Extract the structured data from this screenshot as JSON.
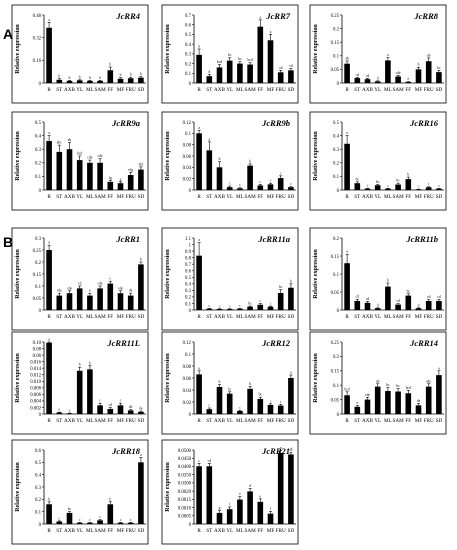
{
  "sections": [
    "A",
    "B"
  ],
  "colors": {
    "bar": "#000000",
    "axis": "#000000"
  },
  "chart_data": [
    {
      "type": "bar",
      "title": "JcRR4",
      "ylabel": "Relative expression",
      "categories": [
        "R",
        "ST",
        "AXB",
        "YL",
        "ML",
        "SAM",
        "FF",
        "MF",
        "FRU",
        "SD"
      ],
      "values": [
        0.52,
        0.03,
        0.02,
        0.025,
        0.02,
        0.02,
        0.12,
        0.04,
        0.045,
        0.05
      ],
      "errors": [
        0.05,
        0.01,
        0.005,
        0.005,
        0.005,
        0.005,
        0.03,
        0.01,
        0.01,
        0.01
      ],
      "letters": [
        "a",
        "b",
        "b",
        "b",
        "b",
        "b",
        "b",
        "b",
        "b",
        "b"
      ],
      "yticks": [
        "0",
        "0.16",
        "0.32",
        "0.48"
      ],
      "ylim": [
        0,
        0.64
      ]
    },
    {
      "type": "bar",
      "title": "JcRR7",
      "ylabel": "Relative expression",
      "categories": [
        "R",
        "ST",
        "AXB",
        "YL",
        "ML",
        "SAM",
        "FF",
        "MF",
        "FRU",
        "SD"
      ],
      "values": [
        0.29,
        0.07,
        0.16,
        0.23,
        0.2,
        0.19,
        0.58,
        0.44,
        0.11,
        0.13
      ],
      "errors": [
        0.06,
        0.02,
        0.03,
        0.03,
        0.02,
        0.02,
        0.07,
        0.06,
        0.02,
        0.02
      ],
      "letters": [
        "b",
        "d",
        "bcd",
        "bc",
        "bc",
        "bcd",
        "a",
        "a",
        "cd",
        "cd"
      ],
      "yticks": [
        "0",
        "0.1",
        "0.2",
        "0.3",
        "0.4",
        "0.5",
        "0.6",
        "0.7"
      ],
      "ylim": [
        0,
        0.7
      ]
    },
    {
      "type": "bar",
      "title": "JcRR8",
      "ylabel": "Relative expression",
      "categories": [
        "R",
        "ST",
        "AXB",
        "YL",
        "ML",
        "SAM",
        "FF",
        "MF",
        "FRU",
        "SD"
      ],
      "values": [
        0.071,
        0.018,
        0.014,
        0.006,
        0.083,
        0.024,
        0.004,
        0.05,
        0.08,
        0.04
      ],
      "errors": [
        0.01,
        0.003,
        0.003,
        0.002,
        0.01,
        0.004,
        0.001,
        0.008,
        0.012,
        0.006
      ],
      "letters": [
        "ab",
        "cd",
        "cd",
        "d",
        "a",
        "cde",
        "e",
        "b",
        "ab",
        "bc"
      ],
      "yticks": [
        "0",
        "0.05",
        "0.1",
        "0.15",
        "0.2",
        "0.25"
      ],
      "ylim": [
        0,
        0.25
      ]
    },
    {
      "type": "bar",
      "title": "JcRR9a",
      "ylabel": "Relative expression",
      "categories": [
        "R",
        "ST",
        "AXB",
        "YL",
        "ML",
        "SAM",
        "FF",
        "MF",
        "FRU",
        "SD"
      ],
      "values": [
        0.36,
        0.28,
        0.3,
        0.22,
        0.2,
        0.2,
        0.06,
        0.05,
        0.11,
        0.15
      ],
      "errors": [
        0.04,
        0.05,
        0.05,
        0.03,
        0.02,
        0.03,
        0.01,
        0.01,
        0.02,
        0.02
      ],
      "letters": [
        "a",
        "abc",
        "ab",
        "bcd",
        "cde",
        "cde",
        "fg",
        "g",
        "efg",
        "def"
      ],
      "yticks": [
        "0",
        "0.1",
        "0.2",
        "0.3",
        "0.4",
        "0.5"
      ],
      "ylim": [
        0,
        0.5
      ]
    },
    {
      "type": "bar",
      "title": "JcRR9b",
      "ylabel": "Relative expression",
      "categories": [
        "R",
        "ST",
        "AXB",
        "YL",
        "ML",
        "SAM",
        "FF",
        "MF",
        "FRU",
        "SD"
      ],
      "values": [
        0.1,
        0.07,
        0.04,
        0.005,
        0.003,
        0.043,
        0.008,
        0.01,
        0.021,
        0.005
      ],
      "errors": [
        0.005,
        0.015,
        0.01,
        0.002,
        0.001,
        0.003,
        0.002,
        0.002,
        0.004,
        0.001
      ],
      "letters": [
        "a",
        "a",
        "b",
        "c",
        "c",
        "b",
        "c",
        "c",
        "c",
        "c"
      ],
      "yticks": [
        "0",
        "0.02",
        "0.04",
        "0.06",
        "0.08",
        "0.1",
        "0.12"
      ],
      "ylim": [
        0,
        0.12
      ]
    },
    {
      "type": "bar",
      "title": "JcRR16",
      "ylabel": "Relative expression",
      "categories": [
        "R",
        "ST",
        "AXB",
        "YL",
        "ML",
        "SAM",
        "FF",
        "MF",
        "FRU",
        "SD"
      ],
      "values": [
        0.34,
        0.05,
        0.01,
        0.035,
        0.01,
        0.04,
        0.08,
        0.005,
        0.02,
        0.01
      ],
      "errors": [
        0.06,
        0.01,
        0.003,
        0.005,
        0.002,
        0.01,
        0.015,
        0.001,
        0.004,
        0.002
      ],
      "letters": [
        "a",
        "bc",
        "c",
        "bc",
        "c",
        "bc",
        "b",
        "c",
        "c",
        "c"
      ],
      "yticks": [
        "0",
        "0.1",
        "0.2",
        "0.3",
        "0.4",
        "0.5"
      ],
      "ylim": [
        0,
        0.5
      ]
    },
    {
      "type": "bar",
      "title": "JcRR1",
      "ylabel": "Relative expression",
      "categories": [
        "R",
        "ST",
        "AXB",
        "YL",
        "ML",
        "SAM",
        "FF",
        "MF",
        "FRU",
        "SD"
      ],
      "values": [
        0.25,
        0.06,
        0.07,
        0.09,
        0.06,
        0.09,
        0.11,
        0.07,
        0.06,
        0.19
      ],
      "errors": [
        0.02,
        0.01,
        0.01,
        0.01,
        0.01,
        0.01,
        0.01,
        0.01,
        0.01,
        0.01
      ],
      "letters": [
        "a",
        "cde",
        "cde",
        "cd",
        "e",
        "cde",
        "c",
        "cde",
        "de",
        "b"
      ],
      "yticks": [
        "0",
        "0.05",
        "0.1",
        "0.15",
        "0.2",
        "0.25",
        "0.3"
      ],
      "ylim": [
        0,
        0.3
      ]
    },
    {
      "type": "bar",
      "title": "JcRR11a",
      "ylabel": "Relative expression",
      "categories": [
        "R",
        "ST",
        "AXB",
        "YL",
        "ML",
        "SAM",
        "FF",
        "MF",
        "FRU",
        "SD"
      ],
      "values": [
        0.83,
        0.02,
        0.015,
        0.015,
        0.02,
        0.05,
        0.08,
        0.05,
        0.26,
        0.34
      ],
      "errors": [
        0.2,
        0.005,
        0.004,
        0.004,
        0.005,
        0.01,
        0.02,
        0.01,
        0.05,
        0.06
      ],
      "letters": [
        "a",
        "c",
        "c",
        "c",
        "c",
        "bc",
        "c",
        "c",
        "bc",
        "b"
      ],
      "yticks": [
        "0",
        "0.1",
        "0.2",
        "0.3",
        "0.4",
        "0.5",
        "0.6",
        "0.7",
        "0.8",
        "0.9",
        "1",
        "1.1"
      ],
      "ylim": [
        0,
        1.1
      ]
    },
    {
      "type": "bar",
      "title": "JcRR11b",
      "ylabel": "Relative expression",
      "categories": [
        "R",
        "ST",
        "AXB",
        "YL",
        "ML",
        "SAM",
        "FF",
        "MF",
        "FRU",
        "SD"
      ],
      "values": [
        0.13,
        0.025,
        0.02,
        0.005,
        0.065,
        0.015,
        0.04,
        0.005,
        0.025,
        0.025
      ],
      "errors": [
        0.025,
        0.005,
        0.004,
        0.001,
        0.01,
        0.003,
        0.005,
        0.001,
        0.004,
        0.004
      ],
      "letters": [
        "a",
        "cd",
        "cd",
        "d",
        "b",
        "cd",
        "bc",
        "d",
        "cd",
        "cd"
      ],
      "yticks": [
        "0",
        "0.05",
        "0.1",
        "0.15",
        "0.2"
      ],
      "ylim": [
        0,
        0.2
      ]
    },
    {
      "type": "bar",
      "title": "JcRR11L",
      "ylabel": "Relative expression",
      "categories": [
        "R",
        "ST",
        "AXB",
        "YL",
        "ML",
        "SAM",
        "FF",
        "MF",
        "FRU",
        "SD"
      ],
      "values": [
        0.99,
        0.02,
        0.01,
        0.6,
        0.62,
        0.12,
        0.07,
        0.12,
        0.05,
        0.03
      ],
      "errors": [
        0.08,
        0.005,
        0.003,
        0.05,
        0.05,
        0.03,
        0.02,
        0.03,
        0.01,
        0.01
      ],
      "letters": [
        "a",
        "e",
        "e",
        "b",
        "b",
        "c",
        "cd",
        "c",
        "de",
        "de"
      ],
      "yticks": [
        "0",
        "0.002",
        "0.004",
        "0.006",
        "0.008",
        "0.010",
        "0.012",
        "0.014",
        "0.016",
        "0.06",
        "0.08",
        "0.10"
      ],
      "ylim": [
        0,
        1
      ]
    },
    {
      "type": "bar",
      "title": "JcRR12",
      "ylabel": "Relative expression",
      "categories": [
        "R",
        "ST",
        "AXB",
        "YL",
        "ML",
        "SAM",
        "FF",
        "MF",
        "FRU",
        "SD"
      ],
      "values": [
        0.066,
        0.008,
        0.045,
        0.034,
        0.005,
        0.042,
        0.025,
        0.015,
        0.014,
        0.06
      ],
      "errors": [
        0.006,
        0.002,
        0.004,
        0.003,
        0.001,
        0.004,
        0.003,
        0.002,
        0.002,
        0.005
      ],
      "letters": [
        "a",
        "c",
        "b",
        "bc",
        "c",
        "b",
        "bc",
        "c",
        "c",
        "a"
      ],
      "yticks": [
        "0",
        "0.02",
        "0.04",
        "0.06",
        "0.08",
        "0.1",
        "0.12"
      ],
      "ylim": [
        0,
        0.12
      ]
    },
    {
      "type": "bar",
      "title": "JcRR14",
      "ylabel": "Relative expression",
      "categories": [
        "R",
        "ST",
        "AXB",
        "YL",
        "ML",
        "SAM",
        "FF",
        "MF",
        "FRU",
        "SD"
      ],
      "values": [
        0.065,
        0.025,
        0.05,
        0.095,
        0.08,
        0.078,
        0.072,
        0.03,
        0.095,
        0.135
      ],
      "errors": [
        0.012,
        0.005,
        0.008,
        0.01,
        0.012,
        0.01,
        0.01,
        0.006,
        0.01,
        0.015
      ],
      "letters": [
        "bcd",
        "e",
        "cde",
        "ab",
        "bc",
        "bc",
        "bcd",
        "de",
        "abc",
        "a"
      ],
      "yticks": [
        "0",
        "0.05",
        "0.1",
        "0.15",
        "0.2",
        "0.25"
      ],
      "ylim": [
        0,
        0.25
      ]
    },
    {
      "type": "bar",
      "title": "JcRR18",
      "ylabel": "Relative expression",
      "categories": [
        "R",
        "ST",
        "AXB",
        "YL",
        "ML",
        "SAM",
        "FF",
        "MF",
        "FRU",
        "SD"
      ],
      "values": [
        0.16,
        0.02,
        0.09,
        0.01,
        0.01,
        0.03,
        0.16,
        0.01,
        0.01,
        0.5
      ],
      "errors": [
        0.02,
        0.005,
        0.01,
        0.003,
        0.003,
        0.005,
        0.02,
        0.003,
        0.003,
        0.04
      ],
      "letters": [
        "b",
        "c",
        "bc",
        "c",
        "c",
        "c",
        "b",
        "c",
        "c",
        "a"
      ],
      "yticks": [
        "0",
        "0.1",
        "0.2",
        "0.3",
        "0.4",
        "0.5",
        "0.6"
      ],
      "ylim": [
        0,
        0.6
      ]
    },
    {
      "type": "bar",
      "title": "JcRR21",
      "ylabel": "Relative expression",
      "categories": [
        "R",
        "ST",
        "AXB",
        "YL",
        "ML",
        "SAM",
        "FF",
        "MF",
        "FRU",
        "SD"
      ],
      "values": [
        0.78,
        0.78,
        0.15,
        0.2,
        0.33,
        0.44,
        0.3,
        0.14,
        0.96,
        0.94
      ],
      "errors": [
        0.04,
        0.04,
        0.03,
        0.03,
        0.04,
        0.04,
        0.04,
        0.03,
        0.03,
        0.03
      ],
      "letters": [
        "c",
        "cd",
        "g",
        "f",
        "e",
        "d",
        "e",
        "f",
        "a",
        "ab"
      ],
      "yticks": [
        "0",
        "0.0005",
        "0.0010",
        "0.0015",
        "0.0020",
        "0.0300",
        "0.0350",
        "0.0400",
        "0.0450",
        "0.0500"
      ],
      "ylim": [
        0,
        1
      ]
    }
  ]
}
